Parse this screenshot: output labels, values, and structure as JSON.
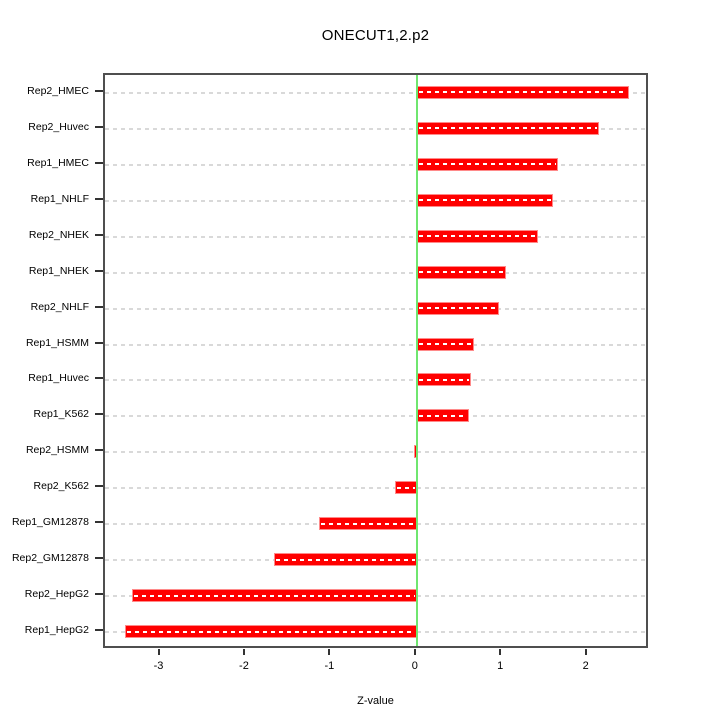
{
  "chart_data": {
    "type": "bar",
    "orientation": "horizontal",
    "title": "ONECUT1,2.p2",
    "xlabel": "Z-value",
    "categories": [
      "Rep2_HMEC",
      "Rep2_Huvec",
      "Rep1_HMEC",
      "Rep1_NHLF",
      "Rep2_NHEK",
      "Rep1_NHEK",
      "Rep2_NHLF",
      "Rep1_HSMM",
      "Rep1_Huvec",
      "Rep1_K562",
      "Rep2_HSMM",
      "Rep2_K562",
      "Rep1_GM12878",
      "Rep2_GM12878",
      "Rep2_HepG2",
      "Rep1_HepG2"
    ],
    "values": [
      2.49,
      2.13,
      1.65,
      1.59,
      1.42,
      1.04,
      0.96,
      0.67,
      0.64,
      0.61,
      -0.03,
      -0.26,
      -1.15,
      -1.67,
      -3.33,
      -3.42
    ],
    "xticks": [
      "-3",
      "-2",
      "-1",
      "0",
      "1",
      "2"
    ],
    "xtick_values": [
      -3,
      -2,
      -1,
      0,
      1,
      2
    ],
    "xlim": [
      -3.65,
      2.73
    ],
    "grid": "dashed-horizontal-per-bar",
    "legend": "none",
    "zero_reference_line": 0,
    "colors": {
      "bar": "#FF0000",
      "bar_border": "#FF8A8A",
      "bar_dash": "#FFFFFF",
      "zero_line": "#6FE66F",
      "gridline": "#D9D9D9",
      "axis": "#4F4F4F",
      "tick": "#333333",
      "text": "#000000",
      "background": "#FFFFFF"
    }
  }
}
